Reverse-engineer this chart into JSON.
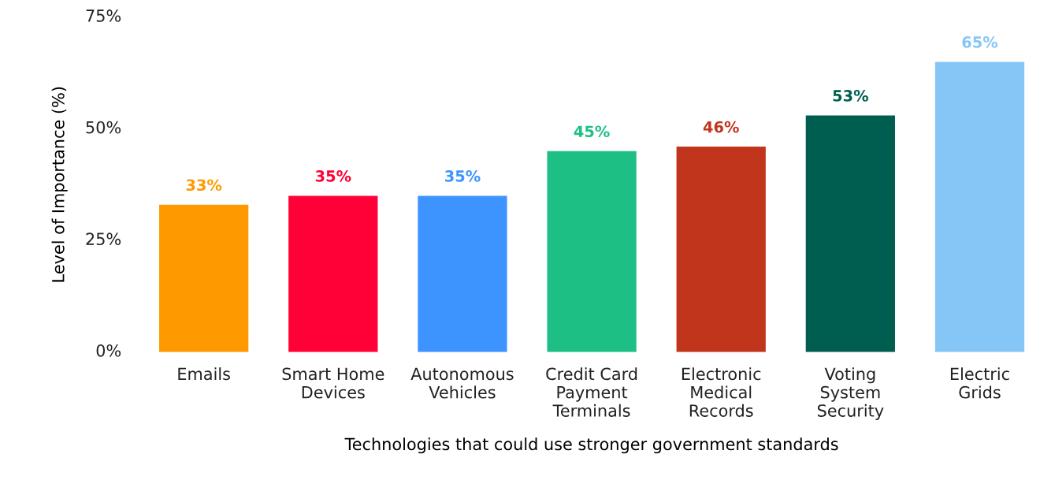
{
  "chart_data": {
    "type": "bar",
    "xlabel": "Technologies that could use stronger government standards",
    "ylabel": "Level of Importance (%)",
    "categories": [
      "Emails",
      "Smart Home\nDevices",
      "Autonomous\nVehicles",
      "Credit Card\nPayment\nTerminals",
      "Electronic\nMedical\nRecords",
      "Voting\nSystem\nSecurity",
      "Electric\nGrids"
    ],
    "values": [
      33,
      35,
      35,
      45,
      46,
      53,
      65
    ],
    "colors": [
      "#ff9900",
      "#ff0037",
      "#3d94ff",
      "#1dbf84",
      "#c2351d",
      "#005e50",
      "#85c6f7"
    ],
    "value_labels": [
      "33%",
      "35%",
      "35%",
      "45%",
      "46%",
      "53%",
      "65%"
    ],
    "ylim": [
      0,
      75
    ],
    "yticks": [
      {
        "value": 0,
        "label": "0%"
      },
      {
        "value": 25,
        "label": "25%"
      },
      {
        "value": 50,
        "label": "50%"
      },
      {
        "value": 75,
        "label": "75%"
      }
    ],
    "grid": false,
    "legend": false
  }
}
